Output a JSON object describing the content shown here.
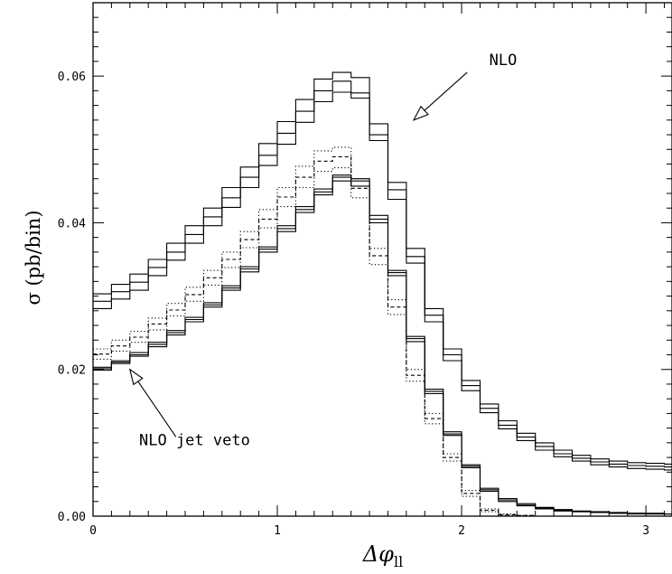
{
  "chart_data": {
    "type": "line",
    "style": "step",
    "xlabel": "Δφ",
    "xlabel_subscript": "ll",
    "ylabel": "σ (pb/bin)",
    "xlim": [
      0,
      3.14159
    ],
    "ylim": [
      0,
      0.07
    ],
    "x_ticks": [
      {
        "value": 0,
        "label": "0"
      },
      {
        "value": 1,
        "label": "1"
      },
      {
        "value": 2,
        "label": "2"
      },
      {
        "value": 3,
        "label": "3"
      }
    ],
    "y_ticks": [
      {
        "value": 0,
        "label": "0.00"
      },
      {
        "value": 0.02,
        "label": "0.02"
      },
      {
        "value": 0.04,
        "label": "0.04"
      },
      {
        "value": 0.06,
        "label": "0.06"
      }
    ],
    "bin_edges": [
      0,
      0.1,
      0.2,
      0.3,
      0.4,
      0.5,
      0.6,
      0.7,
      0.8,
      0.9,
      1.0,
      1.1,
      1.2,
      1.3,
      1.4,
      1.5,
      1.6,
      1.7,
      1.8,
      1.9,
      2.0,
      2.1,
      2.2,
      2.3,
      2.4,
      2.5,
      2.6,
      2.7,
      2.8,
      2.9,
      3.0,
      3.1,
      3.14159
    ],
    "series": [
      {
        "name": "",
        "group": "NLO",
        "line": "solid",
        "values": [
          0.0303,
          0.0316,
          0.033,
          0.035,
          0.0372,
          0.0396,
          0.042,
          0.0448,
          0.0476,
          0.0508,
          0.0538,
          0.0568,
          0.0596,
          0.0605,
          0.0598,
          0.0535,
          0.0455,
          0.0365,
          0.0283,
          0.0228,
          0.0185,
          0.0153,
          0.013,
          0.0113,
          0.01,
          0.009,
          0.0083,
          0.0078,
          0.0075,
          0.0073,
          0.0072,
          0.0071,
          0.007
        ]
      },
      {
        "name": "",
        "group": "NLO",
        "line": "solid",
        "values": [
          0.0293,
          0.0306,
          0.0319,
          0.0339,
          0.036,
          0.0384,
          0.0408,
          0.0434,
          0.0462,
          0.0492,
          0.0522,
          0.0552,
          0.058,
          0.0593,
          0.0577,
          0.052,
          0.0445,
          0.0354,
          0.0274,
          0.022,
          0.0178,
          0.0147,
          0.0124,
          0.0108,
          0.0095,
          0.0085,
          0.0079,
          0.0074,
          0.0071,
          0.0069,
          0.0068,
          0.0067,
          0.0066
        ]
      },
      {
        "name": "",
        "group": "NLO",
        "line": "solid",
        "values": [
          0.0283,
          0.0296,
          0.0308,
          0.0328,
          0.0349,
          0.0372,
          0.0396,
          0.0421,
          0.0448,
          0.0478,
          0.0507,
          0.0537,
          0.0565,
          0.0578,
          0.057,
          0.0512,
          0.0432,
          0.0345,
          0.0265,
          0.0212,
          0.0171,
          0.0141,
          0.0119,
          0.0103,
          0.009,
          0.0081,
          0.0075,
          0.007,
          0.0067,
          0.0065,
          0.0064,
          0.0063,
          0.0062
        ]
      },
      {
        "name": "",
        "group": "NLO jet veto",
        "line": "solid",
        "values": [
          0.0203,
          0.0212,
          0.0223,
          0.0237,
          0.0253,
          0.0271,
          0.0291,
          0.0314,
          0.034,
          0.0367,
          0.0396,
          0.0422,
          0.0446,
          0.0465,
          0.046,
          0.041,
          0.0335,
          0.0245,
          0.0173,
          0.0115,
          0.007,
          0.0038,
          0.0024,
          0.0017,
          0.0012,
          0.0009,
          0.0007,
          0.0006,
          0.0005,
          0.0004,
          0.0004,
          0.0003,
          0.0003
        ]
      },
      {
        "name": "",
        "group": "NLO jet veto",
        "line": "solid",
        "values": [
          0.0201,
          0.021,
          0.022,
          0.0234,
          0.025,
          0.0268,
          0.0288,
          0.0311,
          0.0337,
          0.0364,
          0.0392,
          0.0418,
          0.0442,
          0.0462,
          0.0457,
          0.0405,
          0.0332,
          0.0242,
          0.017,
          0.0112,
          0.0068,
          0.0036,
          0.0022,
          0.0015,
          0.0011,
          0.0008,
          0.0006,
          0.0005,
          0.0004,
          0.0004,
          0.0003,
          0.0003,
          0.0003
        ]
      },
      {
        "name": "",
        "group": "NLO jet veto",
        "line": "solid",
        "values": [
          0.0199,
          0.0208,
          0.0218,
          0.0231,
          0.0247,
          0.0265,
          0.0285,
          0.0308,
          0.0333,
          0.036,
          0.0388,
          0.0414,
          0.0438,
          0.0457,
          0.045,
          0.04,
          0.0328,
          0.0238,
          0.0167,
          0.011,
          0.0066,
          0.0034,
          0.002,
          0.0014,
          0.001,
          0.0007,
          0.0006,
          0.0005,
          0.0004,
          0.0003,
          0.0003,
          0.0003,
          0.0002
        ]
      },
      {
        "name": "",
        "group": "upper",
        "line": "dotted",
        "values": [
          0.0228,
          0.024,
          0.0252,
          0.027,
          0.029,
          0.0312,
          0.0335,
          0.036,
          0.0388,
          0.0418,
          0.0448,
          0.0477,
          0.0498,
          0.0503,
          0.046,
          0.0365,
          0.0295,
          0.02,
          0.014,
          0.0085,
          0.0035,
          0.001,
          0.0003,
          0.0001,
          0.0,
          0.0,
          0.0,
          0.0,
          0.0,
          0.0,
          0.0,
          0.0,
          0.0
        ]
      },
      {
        "name": "",
        "group": "upper",
        "line": "dashed",
        "values": [
          0.0221,
          0.0232,
          0.0244,
          0.0262,
          0.0281,
          0.0302,
          0.0325,
          0.035,
          0.0377,
          0.0405,
          0.0435,
          0.0462,
          0.0484,
          0.049,
          0.0447,
          0.0355,
          0.0285,
          0.0192,
          0.0133,
          0.008,
          0.0031,
          0.0008,
          0.0002,
          0.0001,
          0.0,
          0.0,
          0.0,
          0.0,
          0.0,
          0.0,
          0.0,
          0.0,
          0.0
        ]
      },
      {
        "name": "",
        "group": "upper",
        "line": "dotted",
        "values": [
          0.0214,
          0.0225,
          0.0237,
          0.0254,
          0.0273,
          0.0293,
          0.0315,
          0.0339,
          0.0366,
          0.0393,
          0.0422,
          0.0448,
          0.047,
          0.0475,
          0.0434,
          0.0343,
          0.0275,
          0.0184,
          0.0126,
          0.0075,
          0.0027,
          0.0006,
          0.0001,
          0.0,
          0.0,
          0.0,
          0.0,
          0.0,
          0.0,
          0.0,
          0.0,
          0.0,
          0.0
        ]
      }
    ],
    "annotations": [
      {
        "text": "NLO",
        "x": 2.15,
        "y": 0.0615,
        "arrow_tail": [
          2.03,
          0.0605
        ],
        "arrow_head": [
          1.74,
          0.054
        ]
      },
      {
        "text": "NLO jet veto",
        "x": 0.25,
        "y": 0.0097,
        "arrow_tail": [
          0.45,
          0.0108
        ],
        "arrow_head": [
          0.2,
          0.02
        ]
      }
    ],
    "grid": false,
    "legend": "none"
  }
}
